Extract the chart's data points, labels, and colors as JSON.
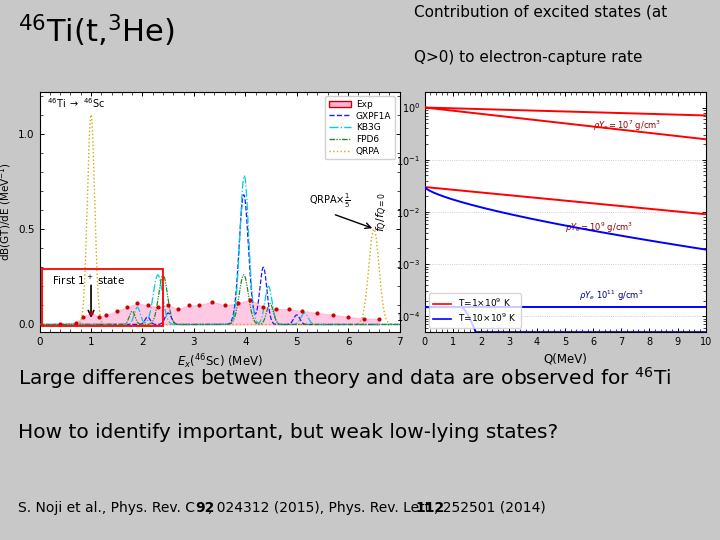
{
  "background_color": "#c8c8c8",
  "title_left_tex": "$^{46}$Ti(t,$^{3}$He)",
  "title_right_line1": "Contribution of excited states (at",
  "title_right_line2": "Q>0) to electron-capture rate",
  "main_line1": "Large differences between theory and data are observed for ",
  "main_line1_super": "$^{46}$Ti",
  "main_line2": "How to identify important, but weak low-lying states?",
  "ref_pre": "S. Noji et al., Phys. Rev. C ",
  "ref_b1": "92",
  "ref_mid": ", 024312 (2015), Phys. Rev. Lett. ",
  "ref_b2": "112",
  "ref_post": ", 252501 (2014)",
  "plot_bg": "white",
  "left_xlim": [
    0,
    7
  ],
  "left_ylim": [
    -0.04,
    1.22
  ],
  "left_xticks": [
    0,
    1,
    2,
    3,
    4,
    5,
    6,
    7
  ],
  "left_yticks": [
    0.0,
    0.5,
    1.0
  ],
  "right_xlim": [
    0,
    10
  ],
  "right_xticks": [
    0,
    1,
    2,
    3,
    4,
    5,
    6,
    7,
    8,
    9,
    10
  ]
}
